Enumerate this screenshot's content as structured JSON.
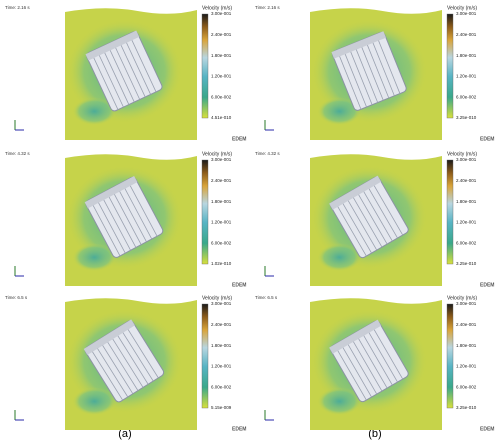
{
  "panels": [
    {
      "time": "Time: 2.16 s",
      "legend_title": "Velocity (m/s)",
      "legend_labels": [
        "3.00e-001",
        "2.40e-001",
        "1.80e-001",
        "1.20e-001",
        "6.00e-002",
        "4.51e-010"
      ],
      "logo": "EDEM"
    },
    {
      "time": "Time: 2.16 s",
      "legend_title": "Velocity (m/s)",
      "legend_labels": [
        "3.00e-001",
        "2.40e-001",
        "1.80e-001",
        "1.20e-001",
        "6.00e-002",
        "3.25e-010"
      ],
      "logo": "EDEM"
    },
    {
      "time": "Time: 4.32 s",
      "legend_title": "Velocity (m/s)",
      "legend_labels": [
        "3.00e-001",
        "2.40e-001",
        "1.80e-001",
        "1.20e-001",
        "6.00e-002",
        "1.02e-010"
      ],
      "logo": "EDEM"
    },
    {
      "time": "Time: 4.32 s",
      "legend_title": "Velocity (m/s)",
      "legend_labels": [
        "3.00e-001",
        "2.40e-001",
        "1.80e-001",
        "1.20e-001",
        "6.00e-002",
        "3.25e-010"
      ],
      "logo": "EDEM"
    },
    {
      "time": "Time: 6.5 s",
      "legend_title": "Velocity (m/s)",
      "legend_labels": [
        "3.00e-001",
        "2.40e-001",
        "1.80e-001",
        "1.20e-001",
        "6.00e-002",
        "5.15e-009"
      ],
      "logo": "EDEM"
    },
    {
      "time": "Time: 6.5 s",
      "legend_title": "Velocity (m/s)",
      "legend_labels": [
        "3.00e-001",
        "2.40e-001",
        "1.80e-001",
        "1.20e-001",
        "6.00e-002",
        "3.25e-010"
      ],
      "logo": "EDEM"
    }
  ],
  "captions": [
    "(a)",
    "(b)"
  ]
}
